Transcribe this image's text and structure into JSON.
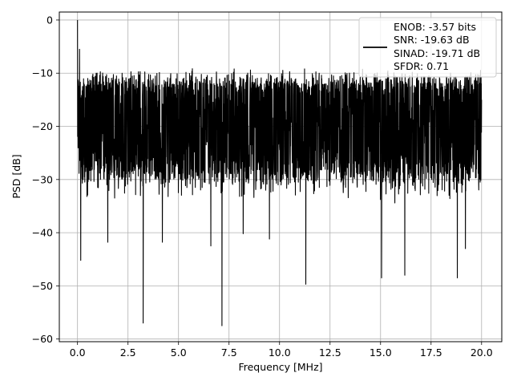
{
  "chart_data": {
    "type": "line",
    "xlabel": "Frequency [MHz]",
    "ylabel": "PSD [dB]",
    "xlim": [
      -0.9,
      21.0
    ],
    "ylim": [
      -60.5,
      1.5
    ],
    "xticks": [
      0.0,
      2.5,
      5.0,
      7.5,
      10.0,
      12.5,
      15.0,
      17.5,
      20.0
    ],
    "xtick_labels": [
      "0.0",
      "2.5",
      "5.0",
      "7.5",
      "10.0",
      "12.5",
      "15.0",
      "17.5",
      "20.0"
    ],
    "yticks": [
      0,
      -10,
      -20,
      -30,
      -40,
      -50,
      -60
    ],
    "ytick_labels": [
      "0",
      "−10",
      "−20",
      "−30",
      "−40",
      "−50",
      "−60"
    ],
    "grid": true,
    "legend_position": "top-right",
    "series": [
      {
        "name": "ENOB: -3.57 bits\nSNR: -19.63 dB\nSINAD: -19.71 dB\nSFDR: 0.71",
        "color": "#000000",
        "x_range": [
          0.0,
          20.0
        ],
        "baseline_db": -21,
        "typical_peak_db": [
          -12,
          -9
        ],
        "typical_trough_db": [
          -30,
          -25
        ],
        "notable_points": [
          {
            "x": 0.0,
            "y": 0.0
          },
          {
            "x": 0.05,
            "y": -18.0
          },
          {
            "x": 0.1,
            "y": -5.5
          },
          {
            "x": 0.16,
            "y": -45.2
          },
          {
            "x": 0.25,
            "y": -12.5
          },
          {
            "x": 1.5,
            "y": -41.8
          },
          {
            "x": 3.25,
            "y": -57.0
          },
          {
            "x": 4.2,
            "y": -41.8
          },
          {
            "x": 6.6,
            "y": -42.5
          },
          {
            "x": 7.15,
            "y": -57.5
          },
          {
            "x": 8.2,
            "y": -40.2
          },
          {
            "x": 9.5,
            "y": -41.2
          },
          {
            "x": 11.3,
            "y": -49.7
          },
          {
            "x": 15.05,
            "y": -48.5
          },
          {
            "x": 16.2,
            "y": -48.0
          },
          {
            "x": 18.8,
            "y": -48.5
          },
          {
            "x": 19.2,
            "y": -43.0
          },
          {
            "x": 20.0,
            "y": -15.0
          }
        ]
      }
    ]
  },
  "legend": {
    "lines": [
      "ENOB: -3.57 bits",
      "SNR: -19.63 dB",
      "SINAD: -19.71 dB",
      "SFDR: 0.71"
    ],
    "line_color": "#000000"
  }
}
